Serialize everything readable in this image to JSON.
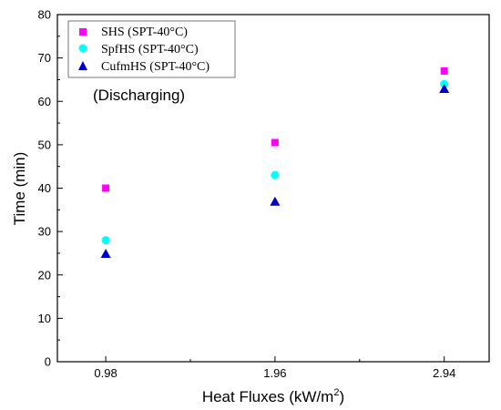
{
  "chart_data": {
    "type": "scatter",
    "xlabel": "Heat Fluxes (kW/m",
    "xlabel_superscript": "2",
    "xlabel_suffix": ")",
    "ylabel": "Time (min)",
    "categories": [
      "0.98",
      "1.96",
      "2.94"
    ],
    "x": [
      0.98,
      1.96,
      2.94
    ],
    "xlim": [
      0.7,
      3.2
    ],
    "ylim": [
      0,
      80
    ],
    "yticks": [
      "0",
      "10",
      "20",
      "30",
      "40",
      "50",
      "60",
      "70",
      "80"
    ],
    "annotation": "(Discharging)",
    "legend_position": "top-left",
    "grid": false,
    "series": [
      {
        "name": "SHS (SPT-40°C)",
        "marker": "square",
        "color": "#ff00ff",
        "values": [
          40,
          50.5,
          67
        ]
      },
      {
        "name": "SpfHS (SPT-40°C)",
        "marker": "circle",
        "color": "#00ffff",
        "values": [
          28,
          43,
          64
        ]
      },
      {
        "name": "CufmHS (SPT-40°C)",
        "marker": "triangle",
        "color": "#0000cc",
        "values": [
          25,
          37,
          63
        ]
      }
    ]
  }
}
